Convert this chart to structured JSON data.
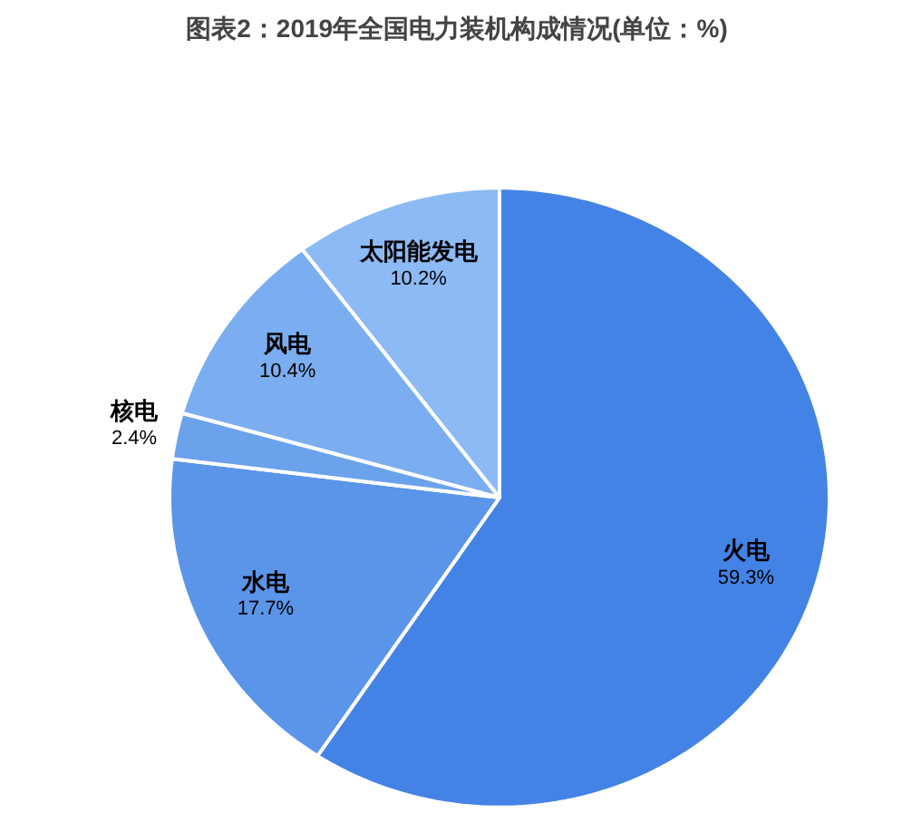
{
  "chart_data": {
    "type": "pie",
    "title": "图表2：2019年全国电力装机构成情况(单位：%)",
    "categories": [
      "火电",
      "水电",
      "核电",
      "风电",
      "太阳能发电"
    ],
    "values": [
      59.3,
      17.7,
      2.4,
      10.4,
      10.2
    ],
    "value_labels": [
      "59.3%",
      "17.7%",
      "2.4%",
      "10.4%",
      "10.2%"
    ],
    "colors": [
      "#4383e6",
      "#5a95e9",
      "#6ba2ec",
      "#7aaef0",
      "#8cbaf4"
    ]
  }
}
